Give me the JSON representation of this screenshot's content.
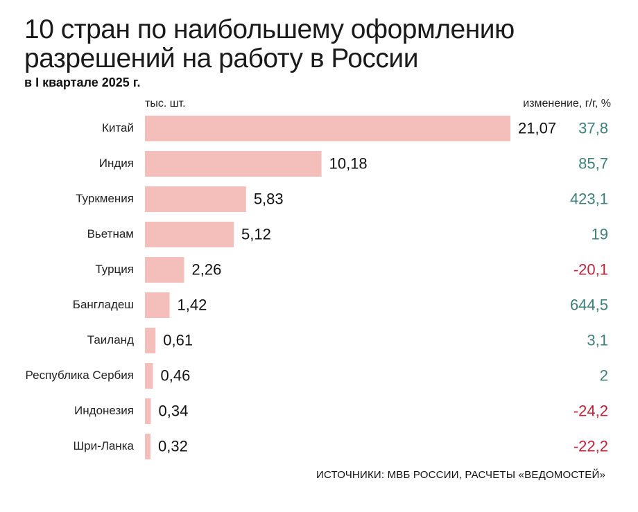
{
  "header": {
    "title_line1": "10 стран по наибольшему оформлению",
    "title_line2": "разрешений на работу в России",
    "subtitle": "в I квартале 2025 г."
  },
  "labels": {
    "unit": "тыс. шт.",
    "change": "изменение, г/г, %"
  },
  "source": "ИСТОЧНИКИ: МВБ РОССИИ, РАСЧЕТЫ «ВЕДОМОСТЕЙ»",
  "colors": {
    "bar": "#f4bfba",
    "positive": "#3e7f79",
    "negative": "#c0243a",
    "value": "#111111",
    "category": "#222222"
  },
  "chart_data": {
    "type": "bar",
    "orientation": "horizontal",
    "categories": [
      "Китай",
      "Индия",
      "Туркмения",
      "Вьетнам",
      "Турция",
      "Бангладеш",
      "Таиланд",
      "Республика Сербия",
      "Индонезия",
      "Шри-Ланка"
    ],
    "series": [
      {
        "values": [
          21.07,
          10.18,
          5.83,
          5.12,
          2.26,
          1.42,
          0.61,
          0.46,
          0.34,
          0.32
        ],
        "value_labels": [
          "21,07",
          "10,18",
          "5,83",
          "5,12",
          "2,26",
          "1,42",
          "0,61",
          "0,46",
          "0,34",
          "0,32"
        ]
      }
    ],
    "change": {
      "values": [
        37.8,
        85.7,
        423.1,
        19,
        -20.1,
        644.5,
        3.1,
        2,
        -24.2,
        -22.2
      ],
      "labels": [
        "37,8",
        "85,7",
        "423,1",
        "19",
        "-20,1",
        "644,5",
        "3,1",
        "2",
        "-24,2",
        "-22,2"
      ]
    },
    "xlim": [
      0,
      21.07
    ],
    "grid": false,
    "legend": "none"
  }
}
